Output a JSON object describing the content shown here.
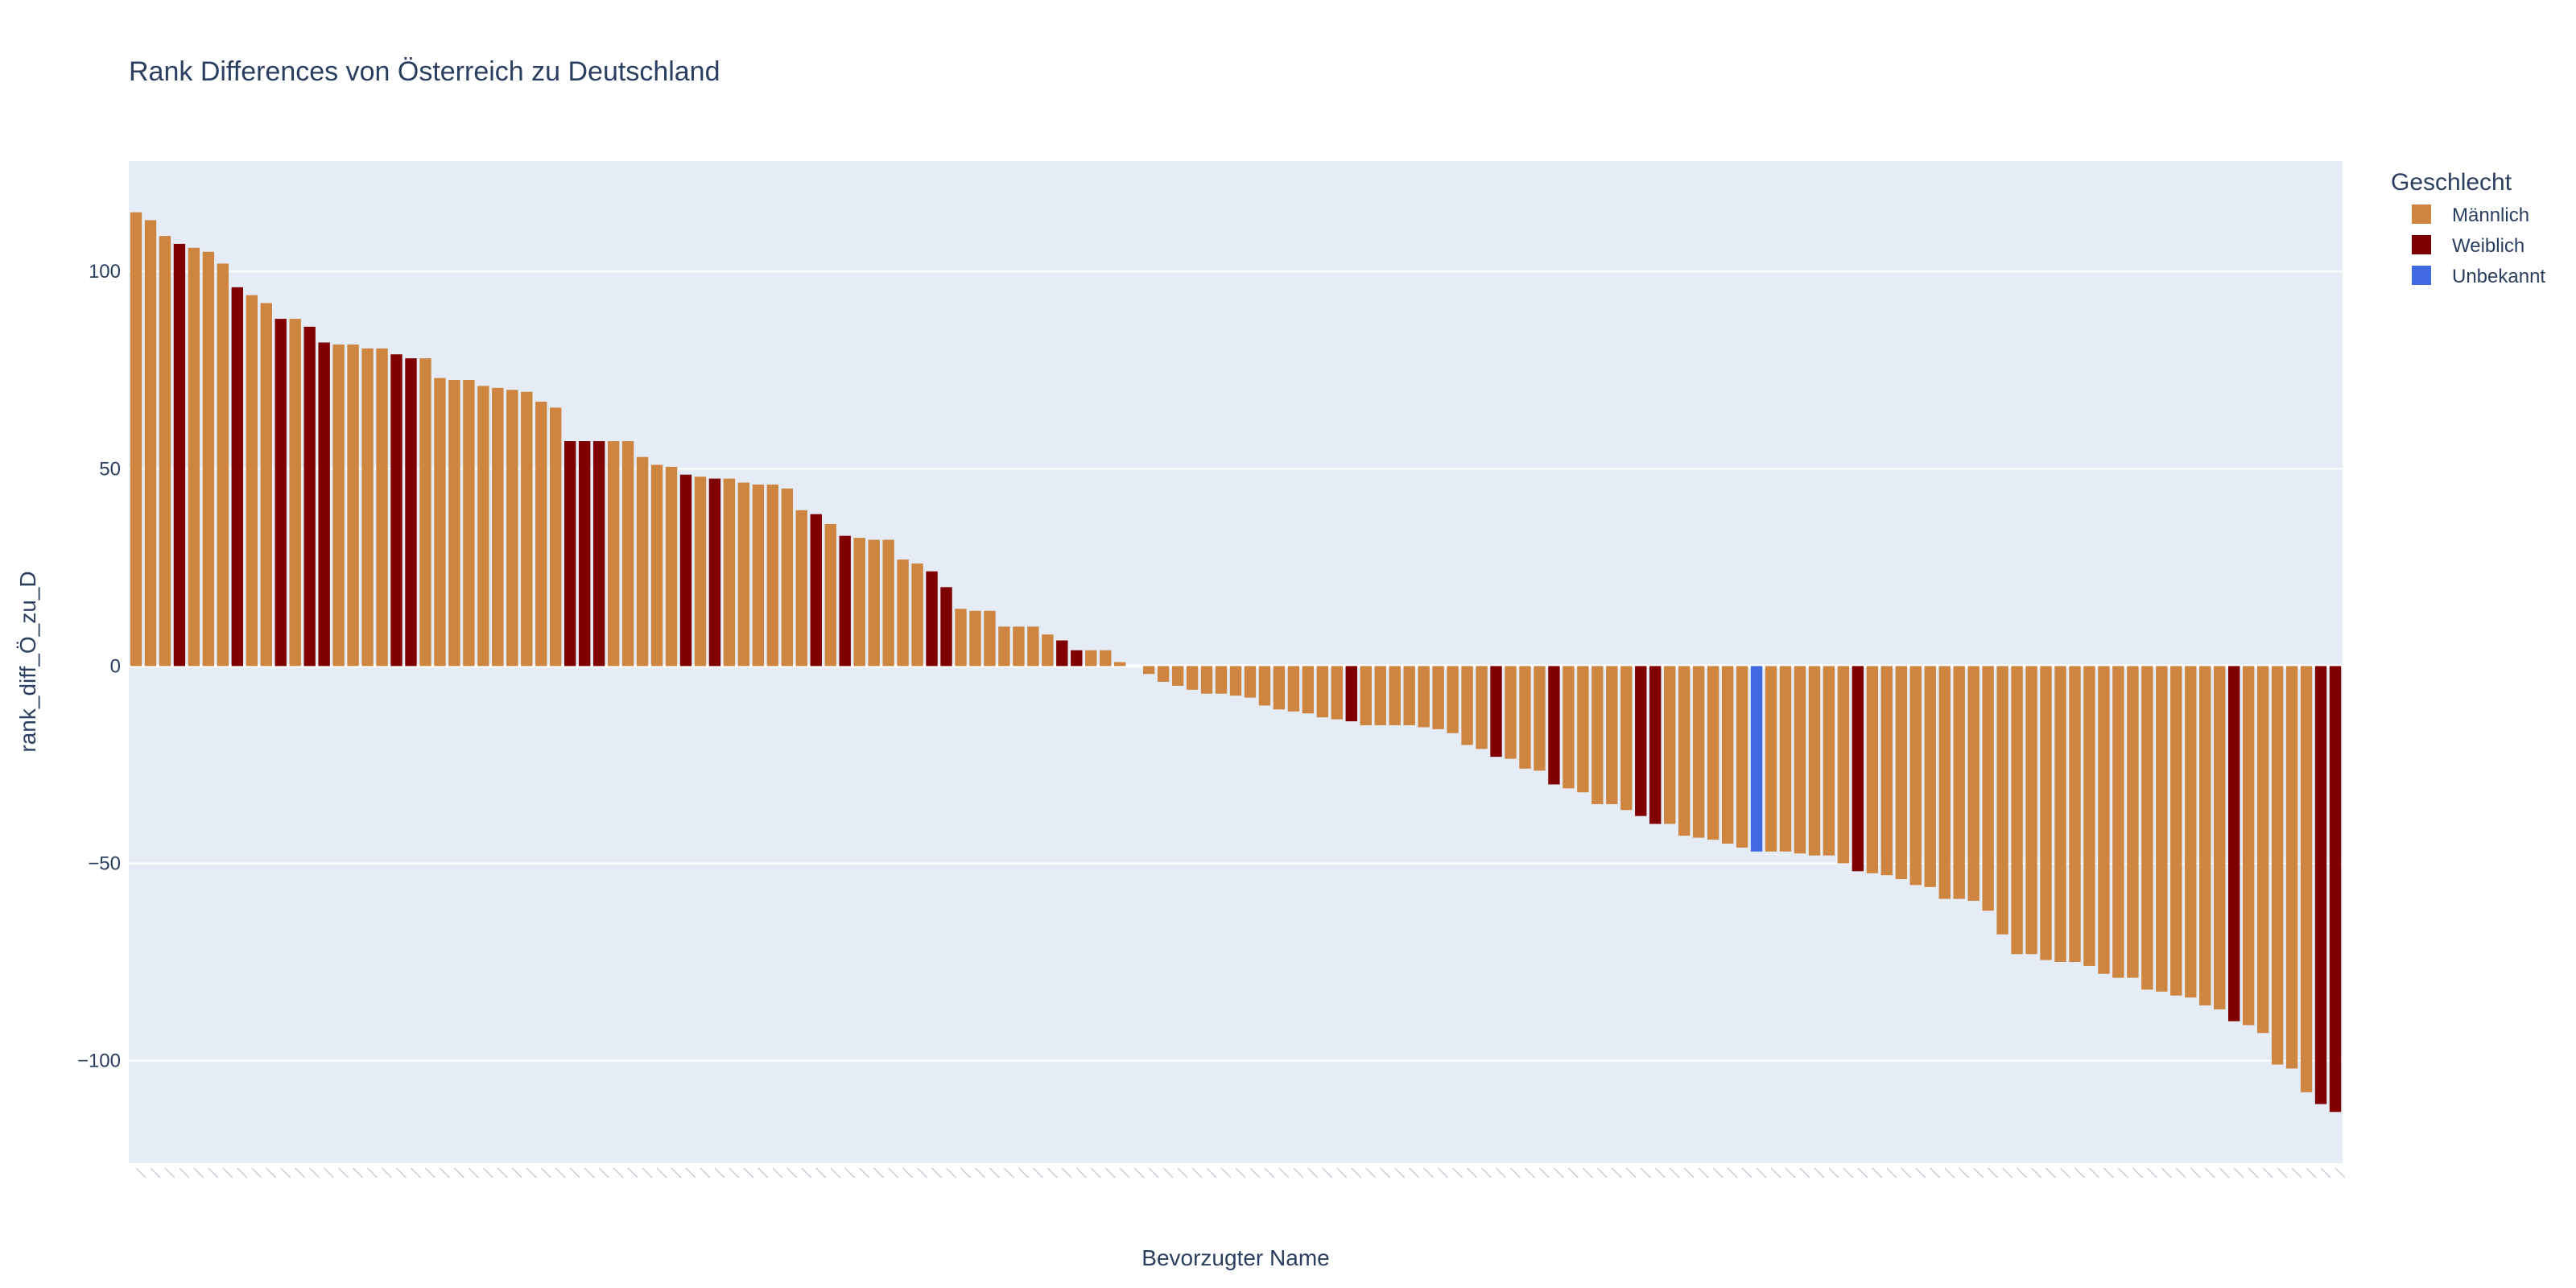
{
  "chart_data": {
    "type": "bar",
    "title": "Rank Differences von Österreich zu Deutschland",
    "xlabel": "Bevorzugter Name",
    "ylabel": "rank_diff_Ö_zu_D",
    "ylim": [
      -126,
      128
    ],
    "yticks": [
      100,
      50,
      0,
      -50,
      -100
    ],
    "ytick_labels": [
      "100",
      "50",
      "0",
      "−50",
      "−100"
    ],
    "grid": true,
    "legend_position": "right",
    "legend": {
      "title": "Geschlecht",
      "entries": [
        {
          "name": "Männlich",
          "color": "#CD853F"
        },
        {
          "name": "Weiblich",
          "color": "#800000"
        },
        {
          "name": "Unbekannt",
          "color": "#4169E1"
        }
      ]
    },
    "values": [
      115,
      113,
      109,
      107,
      106,
      105,
      102,
      96,
      94,
      92,
      88,
      88,
      86,
      82,
      81.5,
      81.5,
      80.5,
      80.5,
      79,
      78,
      78,
      73,
      72.5,
      72.5,
      71,
      70.5,
      70,
      69.5,
      67,
      65.5,
      57,
      57,
      57,
      57,
      57,
      53,
      51,
      50.5,
      48.5,
      48,
      47.5,
      47.5,
      46.5,
      46,
      46,
      45,
      39.5,
      38.5,
      36,
      33,
      32.5,
      32,
      32,
      27,
      26,
      24,
      20,
      14.5,
      14,
      14,
      10,
      10,
      10,
      8,
      6.5,
      4,
      4,
      4,
      1,
      0,
      -2,
      -4,
      -5,
      -6,
      -7,
      -7,
      -7.5,
      -8,
      -10,
      -11,
      -11.5,
      -12,
      -13,
      -13.5,
      -14,
      -15,
      -15,
      -15,
      -15,
      -15.5,
      -16,
      -17,
      -20,
      -21,
      -23,
      -23.5,
      -26,
      -26.5,
      -30,
      -31,
      -32,
      -35,
      -35,
      -36.5,
      -38,
      -40,
      -40,
      -43,
      -43.5,
      -44,
      -45,
      -46,
      -47,
      -47,
      -47,
      -47.5,
      -48,
      -48,
      -50,
      -52,
      -52.5,
      -53,
      -54,
      -55.5,
      -56,
      -59,
      -59,
      -59.5,
      -62,
      -68,
      -73,
      -73,
      -74.5,
      -75,
      -75,
      -76,
      -78,
      -79,
      -79,
      -82,
      -82.5,
      -83.5,
      -84,
      -86,
      -87,
      -90,
      -91,
      -93,
      -101,
      -102,
      -108,
      -111,
      -113
    ],
    "genders": [
      "M",
      "M",
      "M",
      "W",
      "M",
      "M",
      "M",
      "W",
      "M",
      "M",
      "W",
      "M",
      "W",
      "W",
      "M",
      "M",
      "M",
      "M",
      "W",
      "W",
      "M",
      "M",
      "M",
      "M",
      "M",
      "M",
      "M",
      "M",
      "M",
      "M",
      "W",
      "W",
      "W",
      "M",
      "M",
      "M",
      "M",
      "M",
      "W",
      "M",
      "W",
      "M",
      "M",
      "M",
      "M",
      "M",
      "M",
      "W",
      "M",
      "W",
      "M",
      "M",
      "M",
      "M",
      "M",
      "W",
      "W",
      "M",
      "M",
      "M",
      "M",
      "M",
      "M",
      "M",
      "W",
      "W",
      "M",
      "M",
      "M",
      "M",
      "M",
      "M",
      "M",
      "M",
      "M",
      "M",
      "M",
      "M",
      "M",
      "M",
      "M",
      "M",
      "M",
      "M",
      "W",
      "M",
      "M",
      "M",
      "M",
      "M",
      "M",
      "M",
      "M",
      "M",
      "W",
      "M",
      "M",
      "M",
      "W",
      "M",
      "M",
      "M",
      "M",
      "M",
      "W",
      "W",
      "M",
      "M",
      "M",
      "M",
      "M",
      "M",
      "U",
      "M",
      "M",
      "M",
      "M",
      "M",
      "M",
      "W",
      "M",
      "M",
      "M",
      "M",
      "M",
      "M",
      "M",
      "M",
      "M",
      "M",
      "M",
      "M",
      "M",
      "M",
      "M",
      "M",
      "M",
      "M",
      "M",
      "M",
      "M",
      "M",
      "M",
      "M",
      "M",
      "W",
      "M",
      "M",
      "M",
      "M",
      "M",
      "W",
      "W"
    ]
  }
}
